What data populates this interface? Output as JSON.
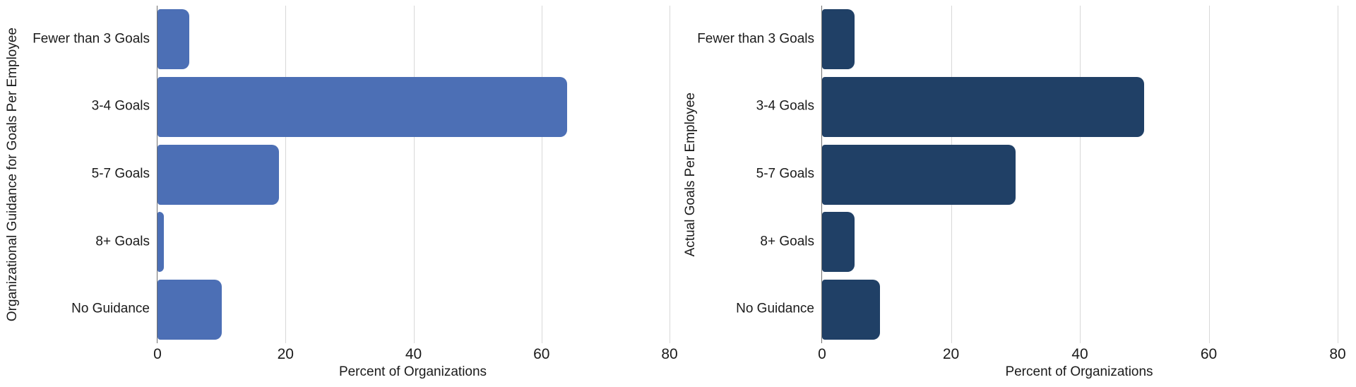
{
  "figure": {
    "background": "#ffffff",
    "text_color": "#1b1b1b",
    "gridline_color": "#d8d8d8",
    "zero_axis_color": "#6e6e6e"
  },
  "chart_data": [
    {
      "type": "bar",
      "orientation": "horizontal",
      "ylabel": "Organizational Guidance for Goals Per Employee",
      "xlabel": "Percent of Organizations",
      "categories": [
        "Fewer than 3 Goals",
        "3-4 Goals",
        "5-7 Goals",
        "8+ Goals",
        "No Guidance"
      ],
      "values": [
        5,
        64,
        19,
        1,
        10
      ],
      "xlim": [
        0,
        80
      ],
      "xticks": [
        0,
        20,
        40,
        60,
        80
      ],
      "bar_color": "#4C6FB5",
      "grid": true,
      "legend": false
    },
    {
      "type": "bar",
      "orientation": "horizontal",
      "ylabel": "Actual Goals Per Employee",
      "xlabel": "Percent of Organizations",
      "categories": [
        "Fewer than 3 Goals",
        "3-4 Goals",
        "5-7 Goals",
        "8+ Goals",
        "No Guidance"
      ],
      "values": [
        5,
        50,
        30,
        5,
        9
      ],
      "xlim": [
        0,
        80
      ],
      "xticks": [
        0,
        20,
        40,
        60,
        80
      ],
      "bar_color": "#204066",
      "grid": true,
      "legend": false
    }
  ]
}
